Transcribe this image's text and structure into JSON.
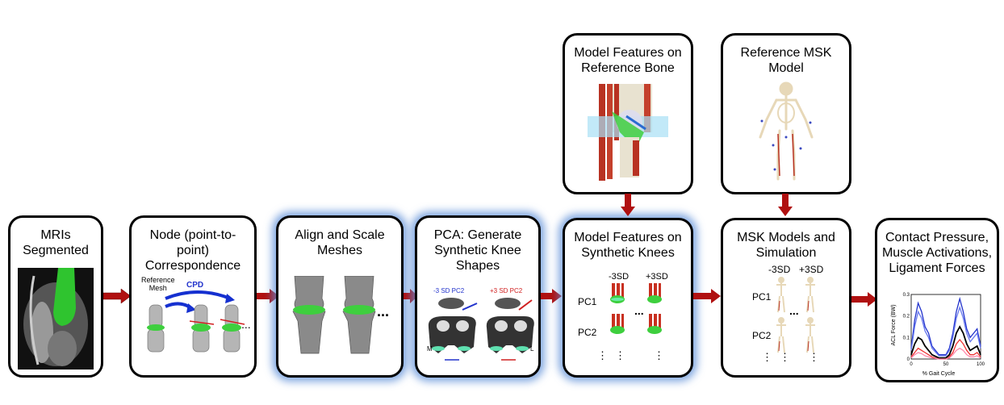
{
  "boxes": {
    "mri": {
      "title": "MRIs\nSegmented"
    },
    "node": {
      "title": "Node (point-to-point)\nCorrespondence",
      "ref_mesh": "Reference\nMesh",
      "cpd": "CPD",
      "dots": "..."
    },
    "align": {
      "title": "Align and Scale\nMeshes",
      "dots": "..."
    },
    "pca": {
      "title": "PCA: Generate\nSynthetic Knee\nShapes",
      "neg_label": "-3 SD PC2",
      "pos_label": "+3 SD PC2",
      "m": "M",
      "l": "L"
    },
    "model_features_synth": {
      "title": "Model Features on\nSynthetic Knees",
      "neg": "-3SD",
      "pos": "+3SD",
      "pc1": "PC1",
      "pc2": "PC2",
      "dots": "...",
      "vdots": "⋮"
    },
    "model_features_ref": {
      "title": "Model Features on\nReference Bone"
    },
    "ref_msk": {
      "title": "Reference MSK\nModel"
    },
    "msk_sim": {
      "title": "MSK Models and\nSimulation",
      "neg": "-3SD",
      "pos": "+3SD",
      "pc1": "PC1",
      "pc2": "PC2",
      "dots": "...",
      "vdots": "⋮"
    },
    "contact": {
      "title": "Contact Pressure,\nMuscle Activations,\nLigament Forces"
    }
  },
  "chart_data": {
    "type": "line",
    "xlabel": "% Gait Cycle",
    "ylabel": "ACL Force (BW)",
    "xlim": [
      0,
      100
    ],
    "ylim": [
      0,
      0.3
    ],
    "xticks": [
      "0",
      "50",
      "100"
    ],
    "yticks": [
      "0",
      "0.1",
      "0.2",
      "0.3"
    ],
    "series": [
      {
        "color": "#2233cc",
        "x": [
          0,
          5,
          10,
          15,
          20,
          25,
          30,
          40,
          50,
          55,
          60,
          65,
          70,
          75,
          80,
          85,
          90,
          95,
          100
        ],
        "y": [
          0.05,
          0.18,
          0.26,
          0.22,
          0.15,
          0.12,
          0.06,
          0.02,
          0.02,
          0.05,
          0.12,
          0.22,
          0.28,
          0.22,
          0.14,
          0.1,
          0.12,
          0.14,
          0.06
        ]
      },
      {
        "color": "#6677ee",
        "x": [
          0,
          5,
          10,
          15,
          20,
          25,
          30,
          40,
          50,
          55,
          60,
          65,
          70,
          75,
          80,
          85,
          90,
          95,
          100
        ],
        "y": [
          0.04,
          0.15,
          0.22,
          0.19,
          0.13,
          0.1,
          0.05,
          0.015,
          0.015,
          0.04,
          0.1,
          0.19,
          0.24,
          0.19,
          0.12,
          0.08,
          0.1,
          0.12,
          0.05
        ]
      },
      {
        "color": "#000000",
        "x": [
          0,
          5,
          10,
          15,
          20,
          25,
          30,
          40,
          50,
          55,
          60,
          65,
          70,
          75,
          80,
          85,
          90,
          95,
          100
        ],
        "y": [
          0.02,
          0.07,
          0.1,
          0.09,
          0.06,
          0.04,
          0.02,
          0.005,
          0.005,
          0.02,
          0.06,
          0.12,
          0.15,
          0.12,
          0.07,
          0.04,
          0.05,
          0.06,
          0.02
        ]
      },
      {
        "color": "#ee3333",
        "x": [
          0,
          5,
          10,
          15,
          20,
          25,
          30,
          40,
          50,
          55,
          60,
          65,
          70,
          75,
          80,
          85,
          90,
          95,
          100
        ],
        "y": [
          0.01,
          0.03,
          0.05,
          0.04,
          0.03,
          0.02,
          0.01,
          0.0,
          0.0,
          0.01,
          0.03,
          0.07,
          0.09,
          0.07,
          0.04,
          0.02,
          0.02,
          0.03,
          0.01
        ]
      },
      {
        "color": "#ff88aa",
        "x": [
          0,
          5,
          10,
          15,
          20,
          25,
          30,
          40,
          50,
          55,
          60,
          65,
          70,
          75,
          80,
          85,
          90,
          95,
          100
        ],
        "y": [
          0.005,
          0.02,
          0.03,
          0.025,
          0.015,
          0.01,
          0.005,
          0.0,
          0.0,
          0.005,
          0.02,
          0.04,
          0.05,
          0.04,
          0.02,
          0.01,
          0.01,
          0.015,
          0.005
        ]
      }
    ]
  },
  "colors": {
    "arrow": "#b01010",
    "glow": "#5a8cd7",
    "bone": "#8a8a8a",
    "green": "#3ecf3e"
  }
}
